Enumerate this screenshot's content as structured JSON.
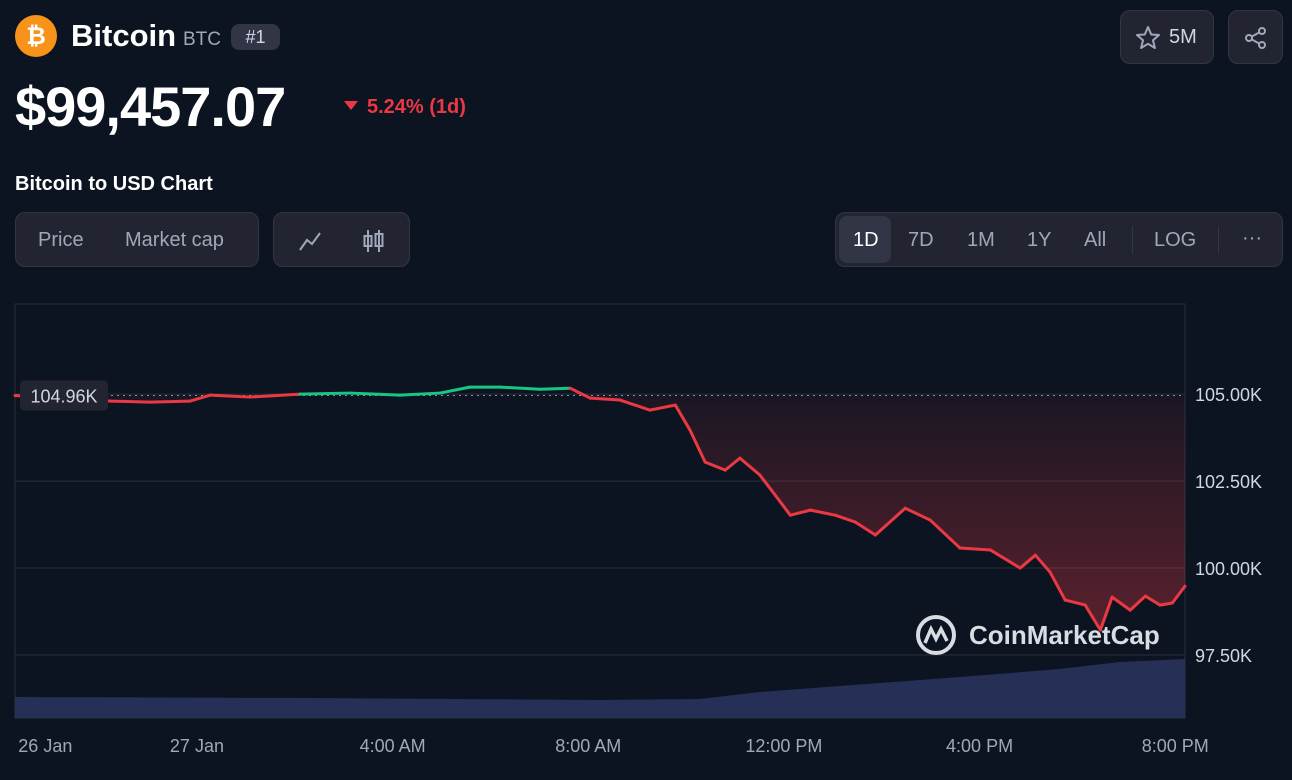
{
  "header": {
    "name": "Bitcoin",
    "symbol": "BTC",
    "rank": "#1",
    "price": "$99,457.07",
    "change": "5.24% (1d)",
    "watchlist": "5M"
  },
  "chart_title": "Bitcoin to USD Chart",
  "tabs": [
    "Price",
    "Market cap"
  ],
  "ranges": [
    "1D",
    "7D",
    "1M",
    "1Y",
    "All"
  ],
  "log": "LOG",
  "more": "···",
  "watermark": "CoinMarketCap",
  "chart_data": {
    "type": "line",
    "x": [
      -3.72,
      -2.8,
      -1.78,
      -0.96,
      -0.14,
      0.27,
      1.08,
      2.11,
      3.13,
      4.15,
      4.97,
      5.58,
      6.2,
      7.01,
      7.63,
      8.04,
      8.65,
      9.26,
      9.78,
      10.08,
      10.39,
      10.8,
      11.1,
      11.51,
      11.82,
      12.13,
      12.54,
      13.05,
      13.46,
      13.87,
      14.48,
      14.99,
      15.6,
      16.22,
      16.83,
      17.14,
      17.44,
      17.75,
      18.16,
      18.47,
      18.71,
      19.08,
      19.39,
      19.69,
      19.94,
      20.2
    ],
    "series": [
      {
        "name": "Price",
        "color": "#ea3943",
        "color_up": "#16c784",
        "values": [
          104960,
          104885,
          104800,
          104770,
          104800,
          104970,
          104915,
          105000,
          105030,
          104970,
          105030,
          105200,
          105200,
          105140,
          105170,
          104885,
          104830,
          104540,
          104685,
          103965,
          103045,
          102815,
          103160,
          102670,
          102100,
          101520,
          101665,
          101520,
          101320,
          100950,
          101720,
          101380,
          100575,
          100520,
          100000,
          100370,
          99885,
          99080,
          98935,
          98220,
          99165,
          98790,
          99195,
          98935,
          98995,
          99480
        ]
      }
    ],
    "reference": {
      "value": 104960,
      "label": "104.96K"
    },
    "xlim": [
      -3.72,
      20.2
    ],
    "ylim": [
      95690,
      107590
    ],
    "xticks": [
      {
        "value": -3.1,
        "label": "26 Jan"
      },
      {
        "value": 0,
        "label": "27 Jan"
      },
      {
        "value": 4,
        "label": "4:00 AM"
      },
      {
        "value": 8,
        "label": "8:00 AM"
      },
      {
        "value": 12,
        "label": "12:00 PM"
      },
      {
        "value": 16,
        "label": "4:00 PM"
      },
      {
        "value": 20,
        "label": "8:00 PM"
      }
    ],
    "yticks": [
      {
        "value": 97500,
        "label": "97.50K"
      },
      {
        "value": 100000,
        "label": "100.00K"
      },
      {
        "value": 102500,
        "label": "102.50K"
      },
      {
        "value": 105000,
        "label": "105.00K"
      }
    ],
    "grid": true
  }
}
